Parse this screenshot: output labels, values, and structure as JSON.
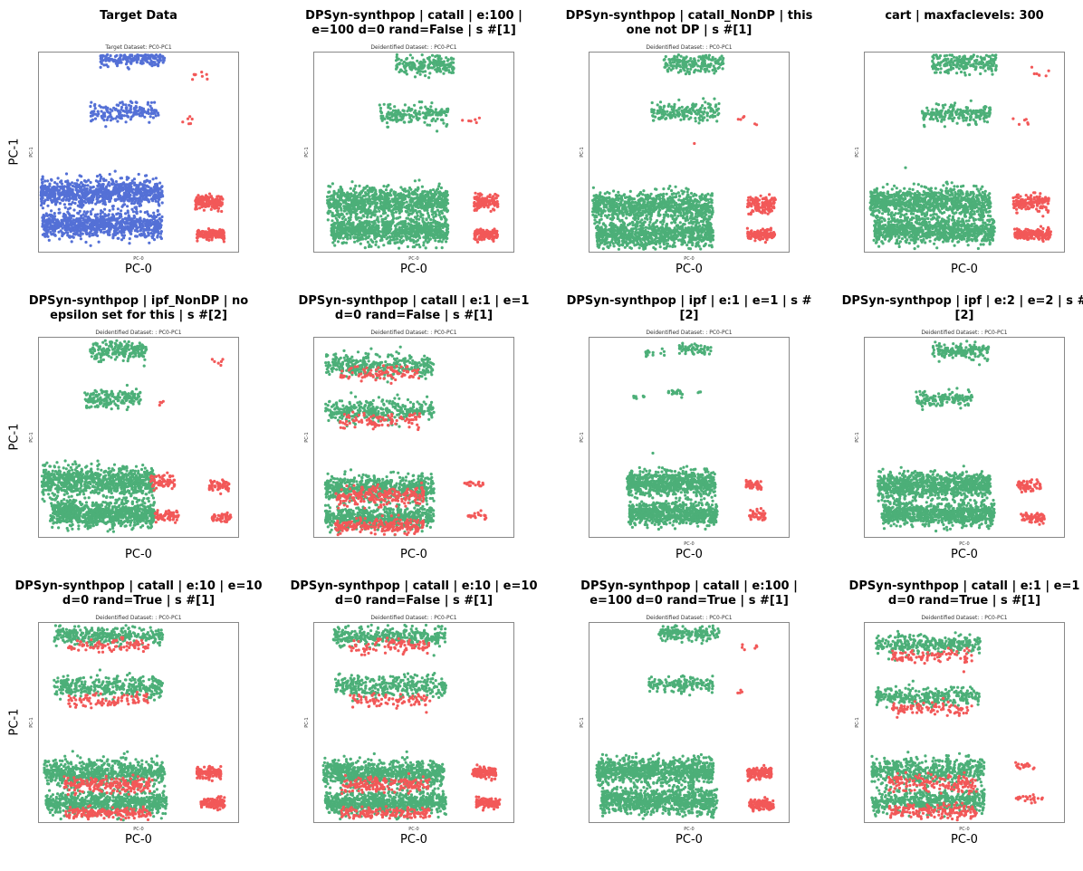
{
  "chart_data": [
    {
      "type": "scatter",
      "title": "Target Data",
      "subtitle": "Target Dataset: PC0-PC1",
      "xlabel": "PC-0",
      "ylabel": "PC-1",
      "inner_xlabel": "PC-0",
      "inner_ylabel": "PC-1",
      "grid": false,
      "series": [
        {
          "color": "#5470d6",
          "clusters": [
            [
              0.47,
              0.04,
              0.16,
              0.04,
              180
            ],
            [
              0.43,
              0.3,
              0.17,
              0.05,
              170
            ],
            [
              0.3,
              0.7,
              0.32,
              0.07,
              900
            ],
            [
              0.32,
              0.86,
              0.3,
              0.07,
              900
            ]
          ]
        },
        {
          "color": "#f25858",
          "clusters": [
            [
              0.82,
              0.12,
              0.06,
              0.03,
              8
            ],
            [
              0.76,
              0.34,
              0.04,
              0.03,
              6
            ],
            [
              0.85,
              0.75,
              0.07,
              0.04,
              150
            ],
            [
              0.86,
              0.91,
              0.07,
              0.03,
              150
            ]
          ]
        }
      ]
    },
    {
      "type": "scatter",
      "title": "DPSyn-synthpop | catall | e:100 | e=100 d=0 rand=False | s #[1]",
      "subtitle": "Deidentified Dataset: : PC0-PC1",
      "xlabel": "PC-0",
      "ylabel": "",
      "inner_xlabel": "PC-0",
      "inner_ylabel": "PC-1",
      "grid": false,
      "series": [
        {
          "color": "#4caf78",
          "clusters": [
            [
              0.55,
              0.07,
              0.15,
              0.05,
              200
            ],
            [
              0.5,
              0.31,
              0.17,
              0.05,
              190
            ],
            [
              0.37,
              0.75,
              0.3,
              0.08,
              900
            ],
            [
              0.38,
              0.89,
              0.29,
              0.07,
              900
            ]
          ]
        },
        {
          "color": "#f25858",
          "clusters": [
            [
              0.78,
              0.34,
              0.05,
              0.03,
              6
            ],
            [
              0.86,
              0.75,
              0.06,
              0.04,
              130
            ],
            [
              0.86,
              0.91,
              0.06,
              0.03,
              130
            ]
          ]
        }
      ]
    },
    {
      "type": "scatter",
      "title": "DPSyn-synthpop | catall_NonDP | this one not DP | s #[1]",
      "subtitle": "Deidentified Dataset: : PC0-PC1",
      "xlabel": "PC-0",
      "ylabel": "",
      "inner_xlabel": "PC-0",
      "inner_ylabel": "PC-1",
      "grid": false,
      "series": [
        {
          "color": "#4caf78",
          "clusters": [
            [
              0.52,
              0.06,
              0.15,
              0.05,
              200
            ],
            [
              0.48,
              0.3,
              0.17,
              0.05,
              190
            ],
            [
              0.32,
              0.77,
              0.3,
              0.08,
              900
            ],
            [
              0.33,
              0.91,
              0.29,
              0.07,
              900
            ]
          ]
        },
        {
          "color": "#f25858",
          "clusters": [
            [
              0.78,
              0.34,
              0.06,
              0.03,
              6
            ],
            [
              0.86,
              0.76,
              0.07,
              0.04,
              130
            ],
            [
              0.86,
              0.91,
              0.07,
              0.03,
              130
            ],
            [
              0.52,
              0.46,
              0.01,
              0.01,
              1
            ]
          ]
        }
      ]
    },
    {
      "type": "scatter",
      "title": "cart | maxfaclevels: 300",
      "subtitle": "",
      "xlabel": "PC-0",
      "ylabel": "",
      "inner_xlabel": "",
      "inner_ylabel": "PC-1",
      "grid": false,
      "series": [
        {
          "color": "#4caf78",
          "clusters": [
            [
              0.5,
              0.06,
              0.16,
              0.05,
              220
            ],
            [
              0.46,
              0.31,
              0.17,
              0.05,
              200
            ],
            [
              0.33,
              0.75,
              0.3,
              0.08,
              900
            ],
            [
              0.35,
              0.89,
              0.3,
              0.07,
              900
            ]
          ]
        },
        {
          "color": "#f25858",
          "clusters": [
            [
              0.88,
              0.11,
              0.05,
              0.03,
              7
            ],
            [
              0.78,
              0.35,
              0.05,
              0.03,
              6
            ],
            [
              0.83,
              0.75,
              0.09,
              0.04,
              170
            ],
            [
              0.84,
              0.91,
              0.09,
              0.03,
              170
            ]
          ]
        }
      ]
    },
    {
      "type": "scatter",
      "title": "DPSyn-synthpop | ipf_NonDP | no epsilon set for this | s #[2]",
      "subtitle": "Deidentified Dataset: : PC0-PC1",
      "xlabel": "PC-0",
      "ylabel": "PC-1",
      "inner_xlabel": "",
      "inner_ylabel": "PC-1",
      "grid": false,
      "series": [
        {
          "color": "#4caf78",
          "clusters": [
            [
              0.4,
              0.07,
              0.14,
              0.05,
              200
            ],
            [
              0.37,
              0.31,
              0.14,
              0.05,
              180
            ],
            [
              0.3,
              0.72,
              0.28,
              0.08,
              900
            ],
            [
              0.32,
              0.88,
              0.26,
              0.07,
              900
            ]
          ]
        },
        {
          "color": "#f25858",
          "clusters": [
            [
              0.62,
              0.72,
              0.06,
              0.04,
              70
            ],
            [
              0.64,
              0.89,
              0.06,
              0.03,
              70
            ],
            [
              0.9,
              0.74,
              0.05,
              0.03,
              50
            ],
            [
              0.91,
              0.9,
              0.05,
              0.03,
              50
            ],
            [
              0.89,
              0.12,
              0.03,
              0.02,
              6
            ],
            [
              0.62,
              0.33,
              0.02,
              0.02,
              4
            ]
          ]
        }
      ]
    },
    {
      "type": "scatter",
      "title": "DPSyn-synthpop | catall | e:1 | e=1 d=0 rand=False | s #[1]",
      "subtitle": "Deidentified Dataset: : PC0-PC1",
      "xlabel": "PC-0",
      "ylabel": "",
      "inner_xlabel": "",
      "inner_ylabel": "PC-1",
      "grid": false,
      "series": [
        {
          "color": "#4caf78",
          "clusters": [
            [
              0.33,
              0.14,
              0.27,
              0.06,
              350
            ],
            [
              0.33,
              0.37,
              0.27,
              0.06,
              350
            ],
            [
              0.33,
              0.75,
              0.27,
              0.07,
              600
            ],
            [
              0.33,
              0.9,
              0.27,
              0.06,
              600
            ]
          ]
        },
        {
          "color": "#f25858",
          "clusters": [
            [
              0.33,
              0.18,
              0.2,
              0.04,
              100
            ],
            [
              0.33,
              0.42,
              0.2,
              0.04,
              100
            ],
            [
              0.33,
              0.79,
              0.22,
              0.05,
              220
            ],
            [
              0.33,
              0.94,
              0.22,
              0.04,
              220
            ],
            [
              0.8,
              0.73,
              0.05,
              0.02,
              20
            ],
            [
              0.82,
              0.89,
              0.05,
              0.02,
              20
            ]
          ]
        }
      ]
    },
    {
      "type": "scatter",
      "title": "DPSyn-synthpop | ipf | e:1 | e=1 | s #[2]",
      "subtitle": "Deidentified Dataset: : PC0-PC1",
      "xlabel": "PC-0",
      "ylabel": "",
      "inner_xlabel": "PC-0",
      "inner_ylabel": "PC-1",
      "grid": false,
      "series": [
        {
          "color": "#4caf78",
          "clusters": [
            [
              0.53,
              0.06,
              0.08,
              0.03,
              60
            ],
            [
              0.33,
              0.08,
              0.05,
              0.02,
              15
            ],
            [
              0.43,
              0.28,
              0.04,
              0.02,
              20
            ],
            [
              0.25,
              0.3,
              0.03,
              0.01,
              8
            ],
            [
              0.55,
              0.27,
              0.01,
              0.01,
              4
            ],
            [
              0.41,
              0.73,
              0.22,
              0.07,
              700
            ],
            [
              0.42,
              0.88,
              0.22,
              0.06,
              700
            ]
          ]
        },
        {
          "color": "#f25858",
          "clusters": [
            [
              0.82,
              0.74,
              0.04,
              0.03,
              40
            ],
            [
              0.84,
              0.89,
              0.04,
              0.03,
              40
            ]
          ]
        }
      ]
    },
    {
      "type": "scatter",
      "title": "DPSyn-synthpop | ipf | e:2 | e=2 | s #[2]",
      "subtitle": "Deidentified Dataset: : PC0-PC1",
      "xlabel": "PC-0",
      "ylabel": "",
      "inner_xlabel": "PC-0",
      "inner_ylabel": "PC-1",
      "grid": false,
      "series": [
        {
          "color": "#4caf78",
          "clusters": [
            [
              0.48,
              0.07,
              0.14,
              0.04,
              160
            ],
            [
              0.4,
              0.31,
              0.14,
              0.04,
              140
            ],
            [
              0.35,
              0.74,
              0.28,
              0.07,
              900
            ],
            [
              0.37,
              0.88,
              0.28,
              0.06,
              900
            ]
          ]
        },
        {
          "color": "#f25858",
          "clusters": [
            [
              0.82,
              0.74,
              0.06,
              0.03,
              60
            ],
            [
              0.84,
              0.9,
              0.06,
              0.03,
              60
            ]
          ]
        }
      ]
    },
    {
      "type": "scatter",
      "title": "DPSyn-synthpop | catall | e:10 | e=10 d=0 rand=True | s #[1]",
      "subtitle": "Deidentified Dataset: : PC0-PC1",
      "xlabel": "PC-0",
      "ylabel": "PC-1",
      "inner_xlabel": "PC-0",
      "inner_ylabel": "PC-1",
      "grid": false,
      "series": [
        {
          "color": "#4caf78",
          "clusters": [
            [
              0.35,
              0.07,
              0.27,
              0.05,
              350
            ],
            [
              0.35,
              0.32,
              0.27,
              0.06,
              350
            ],
            [
              0.33,
              0.75,
              0.3,
              0.07,
              700
            ],
            [
              0.34,
              0.9,
              0.3,
              0.06,
              700
            ]
          ]
        },
        {
          "color": "#f25858",
          "clusters": [
            [
              0.35,
              0.12,
              0.2,
              0.04,
              90
            ],
            [
              0.35,
              0.39,
              0.2,
              0.04,
              90
            ],
            [
              0.35,
              0.81,
              0.22,
              0.04,
              200
            ],
            [
              0.35,
              0.95,
              0.22,
              0.03,
              180
            ],
            [
              0.85,
              0.75,
              0.06,
              0.03,
              120
            ],
            [
              0.87,
              0.9,
              0.06,
              0.03,
              120
            ]
          ]
        }
      ]
    },
    {
      "type": "scatter",
      "title": "DPSyn-synthpop | catall | e:10 | e=10 d=0 rand=False | s #[1]",
      "subtitle": "Deidentified Dataset: : PC0-PC1",
      "xlabel": "PC-0",
      "ylabel": "",
      "inner_xlabel": "PC-0",
      "inner_ylabel": "PC-1",
      "grid": false,
      "series": [
        {
          "color": "#4caf78",
          "clusters": [
            [
              0.38,
              0.07,
              0.28,
              0.05,
              350
            ],
            [
              0.38,
              0.32,
              0.28,
              0.06,
              350
            ],
            [
              0.35,
              0.75,
              0.3,
              0.07,
              800
            ],
            [
              0.36,
              0.9,
              0.3,
              0.06,
              800
            ]
          ]
        },
        {
          "color": "#f25858",
          "clusters": [
            [
              0.38,
              0.12,
              0.2,
              0.04,
              90
            ],
            [
              0.38,
              0.39,
              0.2,
              0.04,
              90
            ],
            [
              0.36,
              0.81,
              0.22,
              0.04,
              180
            ],
            [
              0.36,
              0.95,
              0.22,
              0.03,
              160
            ],
            [
              0.85,
              0.75,
              0.06,
              0.03,
              120
            ],
            [
              0.87,
              0.9,
              0.06,
              0.03,
              120
            ]
          ]
        }
      ]
    },
    {
      "type": "scatter",
      "title": "DPSyn-synthpop | catall | e:100 | e=100 d=0 rand=True | s #[1]",
      "subtitle": "Deidentified Dataset: : PC0-PC1",
      "xlabel": "PC-0",
      "ylabel": "",
      "inner_xlabel": "PC-0",
      "inner_ylabel": "PC-1",
      "grid": false,
      "series": [
        {
          "color": "#4caf78",
          "clusters": [
            [
              0.5,
              0.06,
              0.15,
              0.04,
              180
            ],
            [
              0.46,
              0.31,
              0.16,
              0.04,
              160
            ],
            [
              0.33,
              0.74,
              0.29,
              0.07,
              900
            ],
            [
              0.35,
              0.89,
              0.29,
              0.07,
              900
            ]
          ]
        },
        {
          "color": "#f25858",
          "clusters": [
            [
              0.8,
              0.13,
              0.04,
              0.03,
              6
            ],
            [
              0.75,
              0.35,
              0.02,
              0.02,
              4
            ],
            [
              0.85,
              0.75,
              0.06,
              0.03,
              130
            ],
            [
              0.86,
              0.91,
              0.06,
              0.03,
              130
            ]
          ]
        }
      ]
    },
    {
      "type": "scatter",
      "title": "DPSyn-synthpop | catall | e:1 | e=1 d=0 rand=True | s #[1]",
      "subtitle": "Deidentified Dataset: : PC0-PC1",
      "xlabel": "PC-0",
      "ylabel": "",
      "inner_xlabel": "PC-0",
      "inner_ylabel": "PC-1",
      "grid": false,
      "series": [
        {
          "color": "#4caf78",
          "clusters": [
            [
              0.32,
              0.11,
              0.26,
              0.05,
              300
            ],
            [
              0.32,
              0.37,
              0.26,
              0.05,
              300
            ],
            [
              0.32,
              0.74,
              0.28,
              0.07,
              500
            ],
            [
              0.32,
              0.89,
              0.28,
              0.06,
              500
            ]
          ]
        },
        {
          "color": "#f25858",
          "clusters": [
            [
              0.34,
              0.17,
              0.2,
              0.04,
              90
            ],
            [
              0.34,
              0.43,
              0.2,
              0.04,
              90
            ],
            [
              0.34,
              0.8,
              0.22,
              0.05,
              160
            ],
            [
              0.34,
              0.94,
              0.22,
              0.04,
              160
            ],
            [
              0.8,
              0.72,
              0.05,
              0.02,
              20
            ],
            [
              0.82,
              0.88,
              0.07,
              0.02,
              25
            ]
          ]
        }
      ]
    }
  ]
}
